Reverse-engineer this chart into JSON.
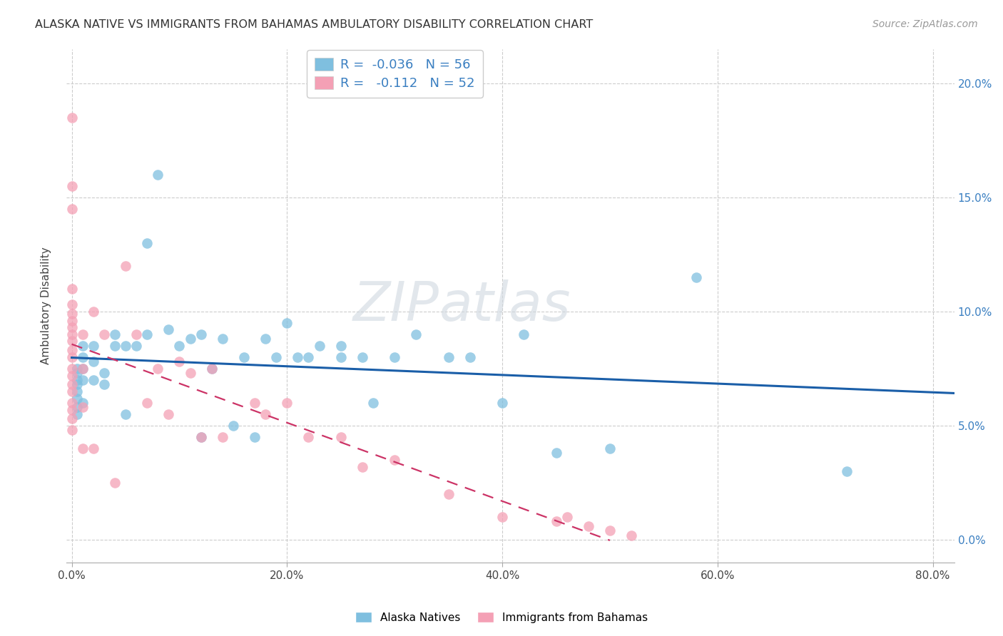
{
  "title": "ALASKA NATIVE VS IMMIGRANTS FROM BAHAMAS AMBULATORY DISABILITY CORRELATION CHART",
  "source": "Source: ZipAtlas.com",
  "ylabel": "Ambulatory Disability",
  "blue_R": "-0.036",
  "blue_N": "56",
  "pink_R": "-0.112",
  "pink_N": "52",
  "blue_color": "#7fbfdf",
  "pink_color": "#f4a0b5",
  "blue_line_color": "#1a5ea8",
  "pink_line_color": "#cc3366",
  "legend_label_blue": "Alaska Natives",
  "legend_label_pink": "Immigrants from Bahamas",
  "watermark_top": "ZIP",
  "watermark_bot": "atlas",
  "xlim": [
    -0.005,
    0.82
  ],
  "ylim": [
    -0.01,
    0.215
  ],
  "xtick_vals": [
    0.0,
    0.2,
    0.4,
    0.6,
    0.8
  ],
  "ytick_vals": [
    0.0,
    0.05,
    0.1,
    0.15,
    0.2
  ],
  "blue_x": [
    0.005,
    0.005,
    0.005,
    0.005,
    0.005,
    0.005,
    0.005,
    0.005,
    0.01,
    0.01,
    0.01,
    0.01,
    0.01,
    0.02,
    0.02,
    0.02,
    0.03,
    0.03,
    0.04,
    0.04,
    0.05,
    0.05,
    0.06,
    0.07,
    0.07,
    0.08,
    0.09,
    0.1,
    0.11,
    0.12,
    0.12,
    0.13,
    0.14,
    0.15,
    0.16,
    0.17,
    0.18,
    0.19,
    0.2,
    0.21,
    0.22,
    0.23,
    0.25,
    0.25,
    0.27,
    0.28,
    0.3,
    0.32,
    0.35,
    0.37,
    0.4,
    0.42,
    0.45,
    0.5,
    0.58,
    0.72
  ],
  "blue_y": [
    0.075,
    0.073,
    0.07,
    0.068,
    0.065,
    0.062,
    0.058,
    0.055,
    0.085,
    0.08,
    0.075,
    0.07,
    0.06,
    0.085,
    0.078,
    0.07,
    0.073,
    0.068,
    0.09,
    0.085,
    0.085,
    0.055,
    0.085,
    0.13,
    0.09,
    0.16,
    0.092,
    0.085,
    0.088,
    0.09,
    0.045,
    0.075,
    0.088,
    0.05,
    0.08,
    0.045,
    0.088,
    0.08,
    0.095,
    0.08,
    0.08,
    0.085,
    0.08,
    0.085,
    0.08,
    0.06,
    0.08,
    0.09,
    0.08,
    0.08,
    0.06,
    0.09,
    0.038,
    0.04,
    0.115,
    0.03
  ],
  "pink_x": [
    0.0,
    0.0,
    0.0,
    0.0,
    0.0,
    0.0,
    0.0,
    0.0,
    0.0,
    0.0,
    0.0,
    0.0,
    0.0,
    0.0,
    0.0,
    0.0,
    0.0,
    0.0,
    0.0,
    0.0,
    0.01,
    0.01,
    0.01,
    0.01,
    0.02,
    0.02,
    0.03,
    0.04,
    0.05,
    0.06,
    0.07,
    0.08,
    0.09,
    0.1,
    0.11,
    0.12,
    0.13,
    0.14,
    0.17,
    0.18,
    0.2,
    0.22,
    0.25,
    0.27,
    0.3,
    0.35,
    0.4,
    0.45,
    0.48,
    0.5,
    0.52,
    0.46
  ],
  "pink_y": [
    0.185,
    0.155,
    0.145,
    0.11,
    0.103,
    0.099,
    0.096,
    0.093,
    0.09,
    0.087,
    0.083,
    0.08,
    0.075,
    0.072,
    0.068,
    0.065,
    0.06,
    0.057,
    0.053,
    0.048,
    0.09,
    0.075,
    0.058,
    0.04,
    0.1,
    0.04,
    0.09,
    0.025,
    0.12,
    0.09,
    0.06,
    0.075,
    0.055,
    0.078,
    0.073,
    0.045,
    0.075,
    0.045,
    0.06,
    0.055,
    0.06,
    0.045,
    0.045,
    0.032,
    0.035,
    0.02,
    0.01,
    0.008,
    0.006,
    0.004,
    0.002,
    0.01
  ]
}
